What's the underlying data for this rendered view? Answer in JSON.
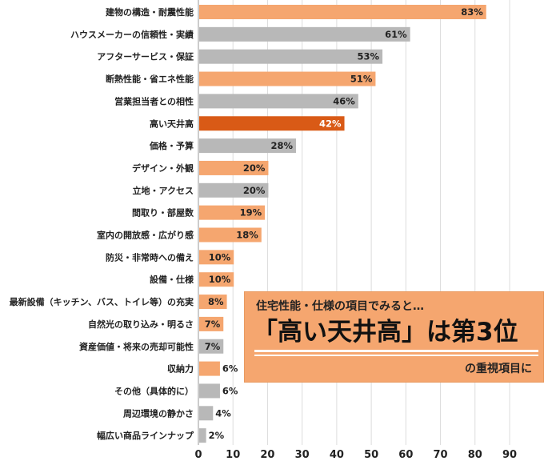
{
  "chart_data": {
    "type": "bar",
    "orientation": "horizontal",
    "categories": [
      "建物の構造・耐震性能",
      "ハウスメーカーの信頼性・実績",
      "アフターサービス・保証",
      "断熱性能・省エネ性能",
      "営業担当者との相性",
      "高い天井高",
      "価格・予算",
      "デザイン・外観",
      "立地・アクセス",
      "間取り・部屋数",
      "室内の開放感・広がり感",
      "防災・非常時への備え",
      "設備・仕様",
      "最新設備（キッチン、バス、トイレ等）の充実",
      "自然光の取り込み・明るさ",
      "資産価値・将来の売却可能性",
      "収納力",
      "その他（具体的に）",
      "周辺環境の静かさ",
      "幅広い商品ラインナップ"
    ],
    "values": [
      83,
      61,
      53,
      51,
      46,
      42,
      28,
      20,
      20,
      19,
      18,
      10,
      10,
      8,
      7,
      7,
      6,
      6,
      4,
      2
    ],
    "value_labels": [
      "83%",
      "61%",
      "53%",
      "51%",
      "46%",
      "42%",
      "28%",
      "20%",
      "20%",
      "19%",
      "18%",
      "10%",
      "10%",
      "8%",
      "7%",
      "7%",
      "6%",
      "6%",
      "4%",
      "2%"
    ],
    "color_groups": [
      "orange",
      "gray",
      "gray",
      "orange",
      "gray",
      "highlight",
      "gray",
      "orange",
      "gray",
      "orange",
      "orange",
      "orange",
      "orange",
      "orange",
      "orange",
      "gray",
      "orange",
      "gray",
      "gray",
      "gray"
    ],
    "colors": {
      "orange": "#f5a66f",
      "gray": "#b8b8b8",
      "highlight": "#d95a16"
    },
    "xlim": [
      0,
      90
    ],
    "xticks": [
      "0",
      "10",
      "20",
      "30",
      "40",
      "50",
      "60",
      "70",
      "80",
      "90"
    ],
    "grid": true,
    "title": "",
    "xlabel": "",
    "ylabel": ""
  },
  "callout": {
    "line1": "住宅性能・仕様の項目でみると…",
    "line2": "「高い天井高」は第3位",
    "line3": "の重視項目に"
  }
}
